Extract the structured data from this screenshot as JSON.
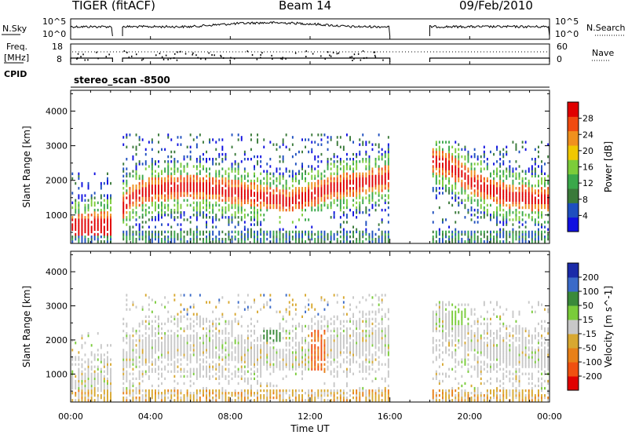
{
  "header": {
    "station": "TIGER (fitACF)",
    "beam": "Beam 14",
    "date": "09/Feb/2010"
  },
  "panel_labels": {
    "nsky": "N.Sky",
    "freq_line1": "Freq.",
    "freq_line2": "[MHz]",
    "cpid": "CPID",
    "nsearch": "N.Search",
    "nave": "Nave",
    "program": "stereo_scan -8500",
    "nsky_ticks": [
      "10^5",
      "10^0"
    ],
    "nsearch_ticks": [
      "10^5",
      "10^0"
    ],
    "freq_ticks": [
      "18",
      "8"
    ],
    "nave_ticks": [
      "60",
      "0"
    ]
  },
  "colors": {
    "power_scale": [
      "#1010e0",
      "#1e4fbf",
      "#3a7a3a",
      "#3aa84a",
      "#7ccc3a",
      "#f0c800",
      "#f0901e",
      "#f04a10",
      "#e00000"
    ],
    "velocity_scale": [
      "#1a2aa8",
      "#3a6ac8",
      "#3a8a3a",
      "#7acc3a",
      "#c8c8c8",
      "#d8a830",
      "#e88018",
      "#f05010",
      "#e00000"
    ]
  },
  "chart_data": [
    {
      "type": "heatmap",
      "title": "",
      "xlabel": "Time UT",
      "ylabel": "Slant Range [km]",
      "x_ticks": [
        "00:00",
        "04:00",
        "08:00",
        "12:00",
        "16:00",
        "20:00",
        "00:00"
      ],
      "x_range_hours": [
        0,
        24
      ],
      "y_ticks": [
        1000,
        2000,
        3000,
        4000
      ],
      "ylim": [
        180,
        4600
      ],
      "data_gaps_hours": [
        [
          2.1,
          2.6
        ],
        [
          16.0,
          18.0
        ]
      ],
      "colorbar": {
        "label": "Power [dB]",
        "ticks": [
          4,
          8,
          12,
          16,
          20,
          24,
          28
        ],
        "range": [
          0,
          30
        ]
      },
      "backscatter_bands": [
        {
          "name": "main",
          "x": [
            0,
            1,
            2,
            3,
            4,
            6,
            8,
            10,
            11,
            12,
            13,
            14,
            15,
            16,
            18,
            19,
            20,
            21,
            22,
            23,
            24
          ],
          "y": [
            600,
            700,
            700,
            1500,
            1700,
            1800,
            1650,
            1450,
            1350,
            1550,
            1750,
            1850,
            1950,
            2050,
            2550,
            2400,
            1950,
            1700,
            1500,
            1450,
            1400
          ]
        }
      ]
    },
    {
      "type": "heatmap",
      "title": "",
      "xlabel": "Time UT",
      "ylabel": "Slant Range [km]",
      "x_ticks": [
        "00:00",
        "04:00",
        "08:00",
        "12:00",
        "16:00",
        "20:00",
        "00:00"
      ],
      "x_range_hours": [
        0,
        24
      ],
      "y_ticks": [
        1000,
        2000,
        3000,
        4000
      ],
      "ylim": [
        180,
        4600
      ],
      "data_gaps_hours": [
        [
          2.1,
          2.6
        ],
        [
          16.0,
          18.0
        ]
      ],
      "colorbar": {
        "label": "Velocity [m s^-1]",
        "ticks": [
          "200",
          "100",
          "50",
          "15",
          "-15",
          "-50",
          "-100",
          "-200"
        ],
        "range": [
          -250,
          250
        ]
      }
    }
  ]
}
